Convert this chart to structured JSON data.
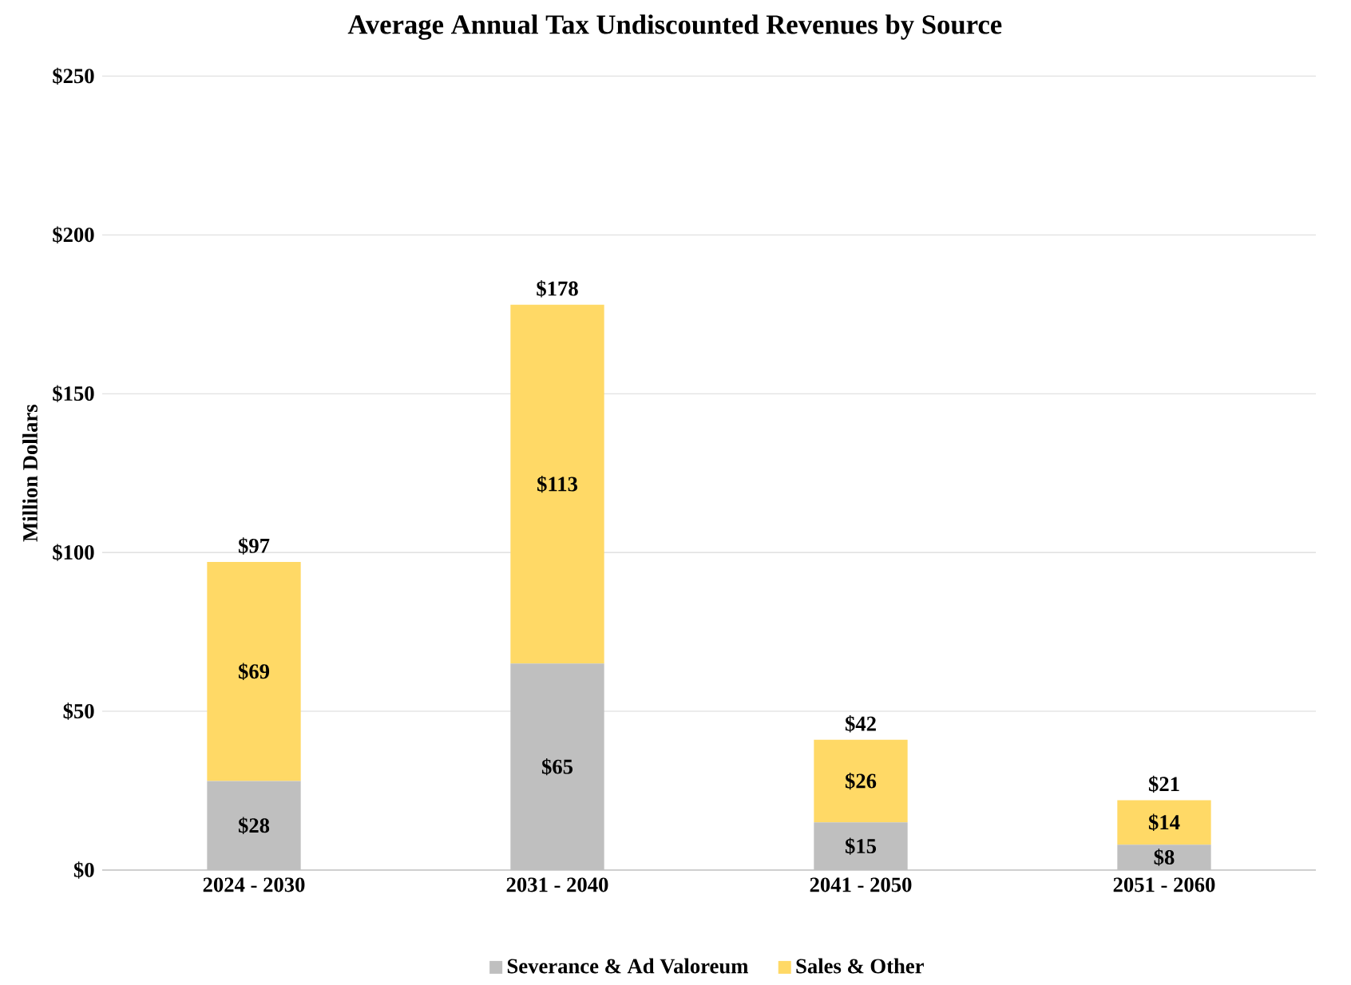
{
  "chart_data": {
    "type": "bar",
    "title": "Average Annual Tax Undiscounted Revenues by Source",
    "ylabel": "Million Dollars",
    "categories": [
      "2024 - 2030",
      "2031 - 2040",
      "2041 - 2050",
      "2051 - 2060"
    ],
    "stacked": true,
    "series": [
      {
        "name": "Severance & Ad Valoreum",
        "color": "#bfbfbf",
        "values": [
          28,
          65,
          15,
          8
        ],
        "value_labels": [
          "$28",
          "$65",
          "$15",
          "$8"
        ]
      },
      {
        "name": "Sales & Other",
        "color": "#ffd966",
        "values": [
          69,
          113,
          26,
          14
        ],
        "value_labels": [
          "$69",
          "$113",
          "$26",
          "$14"
        ]
      }
    ],
    "totals": [
      "$97",
      "$178",
      "$42",
      "$21"
    ],
    "ylim": [
      0,
      250
    ],
    "yticks": [
      {
        "value": 0,
        "label": "$0"
      },
      {
        "value": 50,
        "label": "$50"
      },
      {
        "value": 100,
        "label": "$100"
      },
      {
        "value": 150,
        "label": "$150"
      },
      {
        "value": 200,
        "label": "$200"
      },
      {
        "value": 250,
        "label": "$250"
      }
    ],
    "grid": "y",
    "legend": "bottom"
  }
}
